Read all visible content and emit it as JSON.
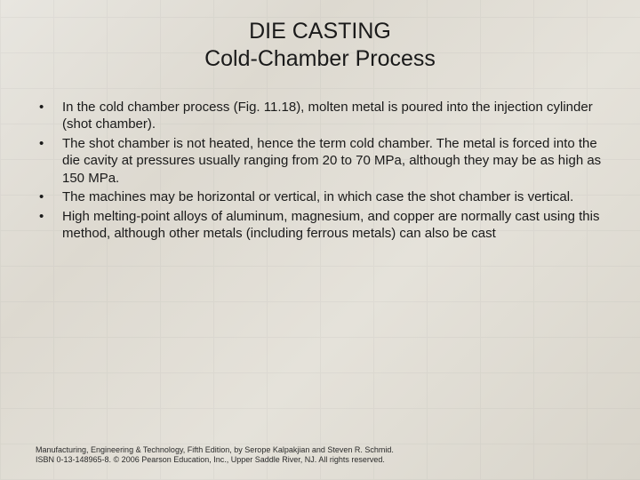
{
  "title_line1": "DIE CASTING",
  "title_line2": "Cold-Chamber Process",
  "bullets": [
    "In the cold chamber process (Fig. 11.18), molten metal is poured into the injection cylinder (shot chamber).",
    "The shot chamber is not heated, hence the term cold chamber.  The metal is forced into the die cavity at pressures usually ranging from 20 to 70 MPa, although they may be as high as 150 MPa.",
    "The machines may be horizontal or vertical, in which case the shot chamber is vertical.",
    "High melting-point alloys of aluminum, magnesium, and copper are normally cast using this method, although other metals (including ferrous metals) can also be cast"
  ],
  "footer_line1": "Manufacturing, Engineering & Technology, Fifth Edition, by Serope Kalpakjian and Steven R. Schmid.",
  "footer_line2": "ISBN 0-13-148965-8. © 2006 Pearson Education, Inc., Upper Saddle River, NJ.  All rights reserved.",
  "colors": {
    "text": "#1a1a1a",
    "background": "#e0ddd4"
  },
  "typography": {
    "title_fontsize": 25,
    "body_fontsize": 15,
    "footer_fontsize": 9
  }
}
